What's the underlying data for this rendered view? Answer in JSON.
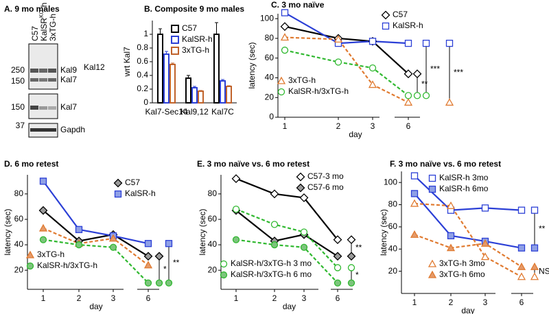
{
  "blot": {
    "title": "A. 9 mo males",
    "lanes": [
      "C57",
      [
        "KalSR",
        "KO",
        "-h"
      ],
      "3xTG-h"
    ],
    "bands": [
      "Kal9",
      "Kal12",
      "Kal7",
      "Kal7",
      "Gapdh"
    ],
    "markers": [
      "250",
      "150",
      "150",
      "37"
    ]
  },
  "chart_data": [
    {
      "type": "bar",
      "title": "B. Composite 9 mo males",
      "ylabel": "wrt Kal7",
      "categories": [
        "Kal7-Sec14",
        "Kal9,12",
        "Kal7C"
      ],
      "series": [
        {
          "name": "C57",
          "color": "#000000",
          "values": [
            1.0,
            0.36,
            1.0
          ],
          "errors": [
            0.08,
            0.04,
            0.17
          ]
        },
        {
          "name": "KalSR-h",
          "color": "#2b3fd6",
          "values": [
            0.71,
            0.22,
            0.32
          ],
          "errors": [
            0.04,
            0.02,
            0.02
          ]
        },
        {
          "name": "3xTG-h",
          "color": "#c0622a",
          "values": [
            0.56,
            0.17,
            0.24
          ],
          "errors": [
            0.02,
            0.01,
            0.01
          ]
        }
      ],
      "ylim": [
        0,
        1.2
      ],
      "yticks": [
        0,
        0.2,
        0.4,
        0.6,
        0.8,
        {
          "value": 1,
          "label": "1"
        }
      ]
    },
    {
      "type": "line",
      "title": "C. 3 mo naïve",
      "ylabel": "latency (sec)",
      "xlabel": "day",
      "categories": [
        "1",
        "2",
        "3",
        "6"
      ],
      "series": [
        {
          "name": "C57",
          "color": "#000000",
          "marker": "diamond",
          "marker_fill": "#ffffff",
          "dashed": false,
          "values": [
            92,
            80,
            77,
            44
          ]
        },
        {
          "name": "KalSR-h",
          "color": "#2b3fd6",
          "marker": "square",
          "marker_fill": "#ffffff",
          "dashed": false,
          "values": [
            106,
            75,
            77,
            75
          ]
        },
        {
          "name": "3xTG-h",
          "color": "#e07a30",
          "marker": "triangle",
          "marker_fill": "#ffffff",
          "dashed": true,
          "values": [
            81,
            79,
            33,
            15
          ]
        },
        {
          "name": "KalSR-h/3xTG-h",
          "color": "#2fb82f",
          "marker": "circle",
          "marker_fill": "#ffffff",
          "dashed": true,
          "values": [
            68,
            56,
            50,
            22
          ]
        }
      ],
      "annotations": [
        {
          "series": [
            0,
            3
          ],
          "label": "**"
        },
        {
          "series": [
            1,
            3
          ],
          "label": "***"
        },
        {
          "series": [
            1,
            2
          ],
          "label": "***"
        }
      ],
      "ylim": [
        0,
        105
      ],
      "yticks": [
        0,
        20,
        40,
        60,
        80,
        100
      ]
    },
    {
      "type": "line",
      "title": "D. 6 mo retest",
      "ylabel": "latency (sec)",
      "xlabel": "day",
      "categories": [
        "1",
        "2",
        "3",
        "6"
      ],
      "series": [
        {
          "name": "C57",
          "color": "#000000",
          "marker": "diamond",
          "marker_fill": "#9a9a9a",
          "dashed": false,
          "values": [
            67,
            43,
            48,
            31
          ]
        },
        {
          "name": "KalSR-h",
          "color": "#2b3fd6",
          "marker": "square",
          "marker_fill": "#8fa0e6",
          "dashed": false,
          "values": [
            90,
            52,
            47,
            41
          ]
        },
        {
          "name": "3xTG-h",
          "color": "#e07a30",
          "marker": "triangle",
          "marker_fill": "#e49a6a",
          "dashed": true,
          "values": [
            53,
            41,
            45,
            24
          ]
        },
        {
          "name": "KalSR-h/3xTG-h",
          "color": "#2fb82f",
          "marker": "circle",
          "marker_fill": "#7cc47c",
          "dashed": true,
          "values": [
            44,
            40,
            38,
            10
          ]
        }
      ],
      "annotations": [
        {
          "series": [
            0,
            3
          ],
          "label": "*"
        },
        {
          "series": [
            1,
            3
          ],
          "label": "**"
        }
      ],
      "ylim": [
        5,
        95
      ],
      "yticks": [
        20,
        40,
        60,
        80
      ]
    },
    {
      "type": "line",
      "title": "E. 3 mo naïve vs. 6 mo retest",
      "ylabel": "latency (sec)",
      "xlabel": "day",
      "categories": [
        "1",
        "2",
        "3",
        "6"
      ],
      "series": [
        {
          "name": "C57-3 mo",
          "color": "#000000",
          "marker": "diamond",
          "marker_fill": "#ffffff",
          "dashed": false,
          "values": [
            92,
            80,
            77,
            44
          ]
        },
        {
          "name": "C57-6 mo",
          "color": "#000000",
          "marker": "diamond",
          "marker_fill": "#9a9a9a",
          "dashed": false,
          "values": [
            67,
            43,
            48,
            31
          ]
        },
        {
          "name": "KalSR-h/3xTG-h 3 mo",
          "color": "#2fb82f",
          "marker": "circle",
          "marker_fill": "#ffffff",
          "dashed": true,
          "values": [
            68,
            56,
            50,
            22
          ]
        },
        {
          "name": "KalSR-h/3xTG-h 6 mo",
          "color": "#2fb82f",
          "marker": "circle",
          "marker_fill": "#7cc47c",
          "dashed": true,
          "values": [
            44,
            40,
            38,
            10
          ]
        }
      ],
      "annotations": [
        {
          "series": [
            0,
            1
          ],
          "label": "**"
        },
        {
          "series": [
            2,
            3
          ],
          "label": "*"
        }
      ],
      "ylim": [
        5,
        95
      ],
      "yticks": [
        20,
        40,
        60,
        80
      ]
    },
    {
      "type": "line",
      "title": "F. 3 mo naïve vs. 6 mo retest",
      "ylabel": "latency (sec)",
      "xlabel": "day",
      "categories": [
        "1",
        "2",
        "3",
        "6"
      ],
      "series": [
        {
          "name": "KalSR-h 3mo",
          "color": "#2b3fd6",
          "marker": "square",
          "marker_fill": "#ffffff",
          "dashed": false,
          "values": [
            106,
            75,
            77,
            75
          ]
        },
        {
          "name": "KalSR-h 6mo",
          "color": "#2b3fd6",
          "marker": "square",
          "marker_fill": "#8fa0e6",
          "dashed": false,
          "values": [
            90,
            52,
            47,
            41
          ]
        },
        {
          "name": "3xTG-h 3mo",
          "color": "#e07a30",
          "marker": "triangle",
          "marker_fill": "#ffffff",
          "dashed": true,
          "values": [
            81,
            79,
            33,
            15
          ]
        },
        {
          "name": "3xTG-h 6mo",
          "color": "#e07a30",
          "marker": "triangle",
          "marker_fill": "#e49a6a",
          "dashed": true,
          "values": [
            53,
            41,
            45,
            24
          ]
        }
      ],
      "annotations": [
        {
          "series": [
            0,
            1
          ],
          "label": "**"
        },
        {
          "series": [
            2,
            3
          ],
          "label": "NS"
        }
      ],
      "ylim": [
        0,
        110
      ],
      "yticks": [
        20,
        40,
        60,
        80,
        100
      ]
    }
  ]
}
